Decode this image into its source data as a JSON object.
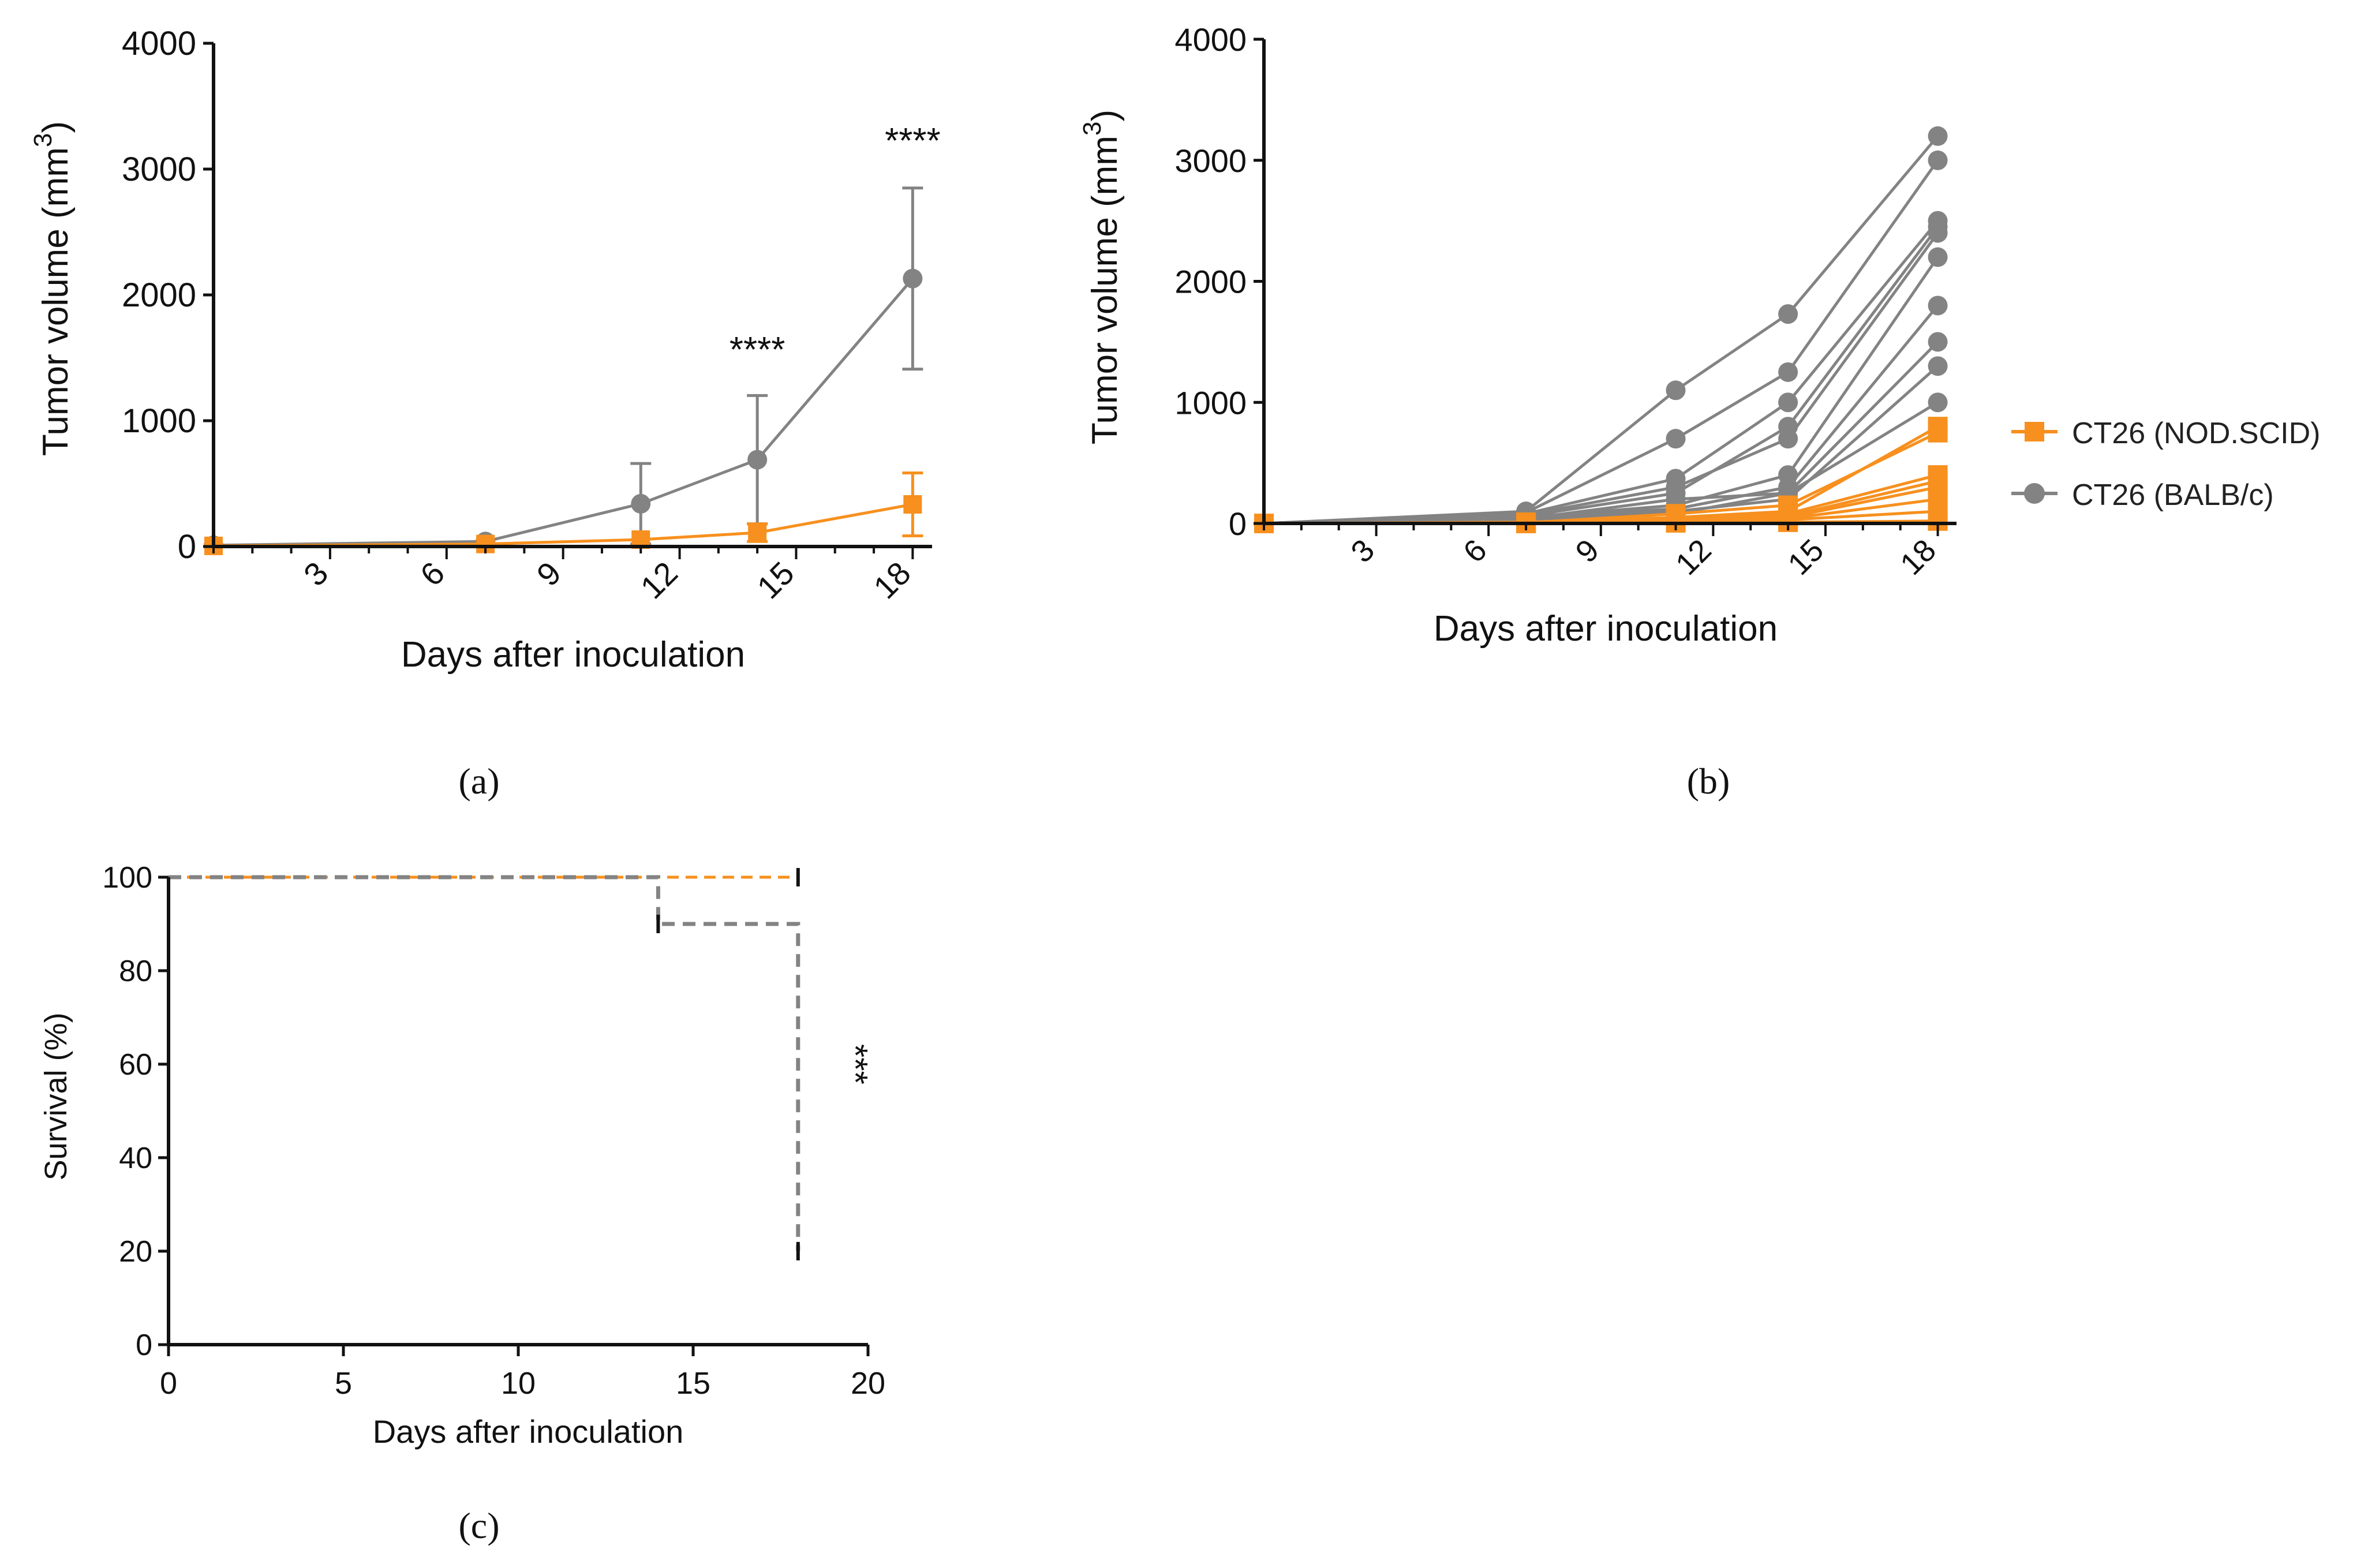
{
  "colors": {
    "orange": "#F7901E",
    "gray": "#838383",
    "axis": "#111111"
  },
  "chart_data": [
    {
      "type": "line",
      "panel_label": "(a)",
      "xlabel": "Days after inoculation",
      "ylabel": "Tumor volume (mm",
      "ylabel_sup": "3",
      "ylabel_close": ")",
      "xticks": [
        "3",
        "6",
        "9",
        "12",
        "15",
        "18"
      ],
      "yticks": [
        "0",
        "1000",
        "2000",
        "3000",
        "4000"
      ],
      "xlim": [
        0,
        18.5
      ],
      "ylim": [
        0,
        4000
      ],
      "series": [
        {
          "name": "CT26 (BALB/c)",
          "color": "gray",
          "marker": "circle",
          "x": [
            0,
            7,
            11,
            14,
            18
          ],
          "y": [
            10,
            40,
            340,
            690,
            2130
          ],
          "err": [
            0,
            0,
            320,
            510,
            720
          ]
        },
        {
          "name": "CT26 (NOD.SCID)",
          "color": "orange",
          "marker": "square",
          "x": [
            0,
            7,
            11,
            14,
            18
          ],
          "y": [
            5,
            20,
            55,
            110,
            335
          ],
          "err": [
            0,
            0,
            0,
            70,
            250
          ]
        }
      ],
      "annotations": [
        {
          "text": "****",
          "x": 14,
          "y": 1560
        },
        {
          "text": "****",
          "x": 18,
          "y": 3220
        }
      ]
    },
    {
      "type": "line",
      "panel_label": "(b)",
      "xlabel": "Days after inoculation",
      "ylabel": "Tumor volume (mm",
      "ylabel_sup": "3",
      "ylabel_close": ")",
      "xticks": [
        "3",
        "6",
        "9",
        "12",
        "15",
        "18"
      ],
      "yticks": [
        "0",
        "1000",
        "2000",
        "3000",
        "4000"
      ],
      "xlim": [
        0,
        18.5
      ],
      "ylim": [
        0,
        4000
      ],
      "legend": [
        {
          "label": "CT26 (NOD.SCID)",
          "color": "orange",
          "marker": "square"
        },
        {
          "label": "CT26 (BALB/c)",
          "color": "gray",
          "marker": "circle"
        }
      ],
      "x": [
        0,
        7,
        11,
        14,
        18
      ],
      "series_gray": [
        [
          0,
          100,
          1100,
          1730,
          3200
        ],
        [
          0,
          90,
          700,
          1250,
          3000
        ],
        [
          0,
          80,
          370,
          1000,
          2500
        ],
        [
          0,
          70,
          300,
          700,
          2400
        ],
        [
          0,
          60,
          250,
          800,
          2450
        ],
        [
          0,
          50,
          150,
          400,
          2200
        ],
        [
          0,
          60,
          120,
          300,
          1800
        ],
        [
          0,
          40,
          200,
          250,
          1500
        ],
        [
          0,
          50,
          100,
          200,
          1300
        ],
        [
          0,
          30,
          80,
          250,
          1000
        ]
      ],
      "series_orange": [
        [
          0,
          10,
          50,
          100,
          800
        ],
        [
          0,
          5,
          80,
          150,
          750
        ],
        [
          0,
          5,
          40,
          80,
          400
        ],
        [
          0,
          5,
          30,
          60,
          350
        ],
        [
          0,
          5,
          30,
          50,
          300
        ],
        [
          0,
          0,
          20,
          40,
          200
        ],
        [
          0,
          0,
          10,
          30,
          100
        ],
        [
          0,
          0,
          5,
          10,
          20
        ]
      ]
    },
    {
      "type": "line",
      "panel_label": "(c)",
      "xlabel": "Days after inoculation",
      "ylabel": "Survival (%)",
      "xticks": [
        "0",
        "5",
        "10",
        "15",
        "20"
      ],
      "yticks": [
        "0",
        "20",
        "40",
        "60",
        "80",
        "100"
      ],
      "xlim": [
        0,
        20
      ],
      "ylim": [
        0,
        100
      ],
      "series": [
        {
          "name": "CT26 (NOD.SCID)",
          "color": "orange",
          "style": "dashed",
          "steps": [
            [
              0,
              100
            ],
            [
              18,
              100
            ]
          ]
        },
        {
          "name": "CT26 (BALB/c)",
          "color": "gray",
          "style": "dashed",
          "steps": [
            [
              0,
              100
            ],
            [
              14,
              100
            ],
            [
              14,
              90
            ],
            [
              18,
              90
            ],
            [
              18,
              20
            ]
          ]
        }
      ],
      "censor_marks": [
        {
          "x": 18,
          "y": 100
        },
        {
          "x": 14,
          "y": 90
        },
        {
          "x": 18,
          "y": 20
        }
      ],
      "annotations": [
        {
          "text": "***",
          "x": 19.3,
          "y": 60
        }
      ]
    }
  ]
}
